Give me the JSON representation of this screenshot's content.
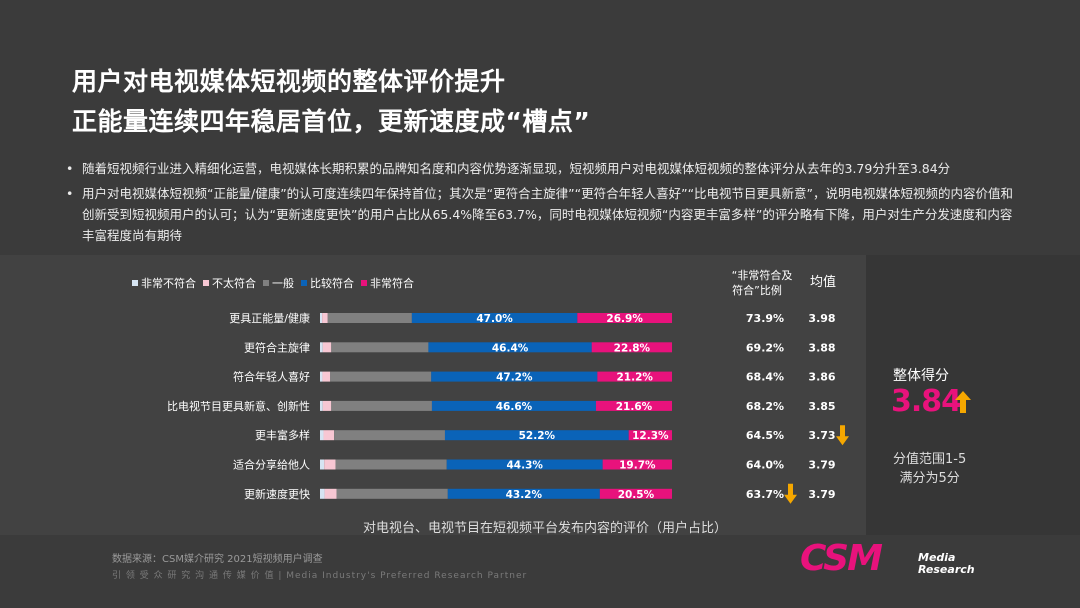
{
  "title_line1": "用户对电视媒体短视频的整体评价提升",
  "title_line2": "正能量连续四年稳居首位，更新速度成“槽点”",
  "bullet1": "随着短视频行业进入精细化运营，电视媒体长期积累的品牌知名度和内容优势逐渐显现，短视频用户对电视媒体短视频的整体评分从去年的3.79分升至3.84分",
  "bullet2": "用户对电视媒体短视频“正能量/健康”的认可度连续四年保持首位；其次是“更符合主旋律”“更符合年轻人喜好”“比电视节目更具新意”，说明电视媒体短视频的内容价值和创新受到短视频用户的认可；认为“更新速度更快”的用户占比从65.4%降至63.7%，同时电视媒体短视频“内容更丰富多样”的评分略有下降，用户对生产分发速度和内容丰富程度尚有期待",
  "score_label": "整体得分",
  "score_value": "3.84",
  "range_line1": "分值范围1-5",
  "range_line2": "满分为5分",
  "source": "数据来源：CSM媒介研究 2021短视频用户调查",
  "tagline": "引 领 受 众 研 究   沟 通 传 媒 价 值 | Media Industry's Preferred  Research Partner",
  "logo_text": "CSM",
  "logo_media": "Media",
  "logo_research": "Research",
  "colors": {
    "very_not": "#d6e4f2",
    "not_much": "#f7c7d3",
    "average": "#808080",
    "fairly": "#0a63b8",
    "very": "#e8127c",
    "arrow": "#f5a700"
  },
  "chart_data": {
    "type": "bar",
    "orientation": "horizontal",
    "stacked": true,
    "title": "对电视台、电视节目在短视频平台发布内容的评价（用户占比）",
    "categories": [
      "更具正能量/健康",
      "更符合主旋律",
      "符合年轻人喜好",
      "比电视节目更具新意、创新性",
      "更丰富多样",
      "适合分享给他人",
      "更新速度更快"
    ],
    "series": [
      {
        "name": "非常不符合",
        "values": [
          0.6,
          0.8,
          0.7,
          0.8,
          1.0,
          1.2,
          1.3
        ]
      },
      {
        "name": "不太符合",
        "values": [
          1.6,
          2.4,
          2.2,
          2.4,
          3.0,
          3.2,
          3.4
        ]
      },
      {
        "name": "一般",
        "values": [
          23.9,
          27.6,
          28.7,
          28.6,
          31.5,
          31.6,
          31.6
        ]
      },
      {
        "name": "比较符合",
        "values": [
          47.0,
          46.4,
          47.2,
          46.6,
          52.2,
          44.3,
          43.2
        ]
      },
      {
        "name": "非常符合",
        "values": [
          26.9,
          22.8,
          21.2,
          21.6,
          12.3,
          19.7,
          20.5
        ]
      }
    ],
    "labels_fairly": [
      "47.0%",
      "46.4%",
      "47.2%",
      "46.6%",
      "52.2%",
      "44.3%",
      "43.2%"
    ],
    "labels_very": [
      "26.9%",
      "22.8%",
      "21.2%",
      "21.6%",
      "12.3%",
      "19.7%",
      "20.5%"
    ],
    "top2_header_line1": "“非常符合及",
    "top2_header_line2": "符合”比例",
    "top2": [
      "73.9%",
      "69.2%",
      "68.4%",
      "68.2%",
      "64.5%",
      "64.0%",
      "63.7%"
    ],
    "mean_header": "均值",
    "mean": [
      "3.98",
      "3.88",
      "3.86",
      "3.85",
      "3.73",
      "3.79",
      "3.79"
    ],
    "down_arrows": {
      "mean": [
        4
      ],
      "top2": [
        6
      ]
    },
    "xlim": [
      0,
      100
    ]
  }
}
